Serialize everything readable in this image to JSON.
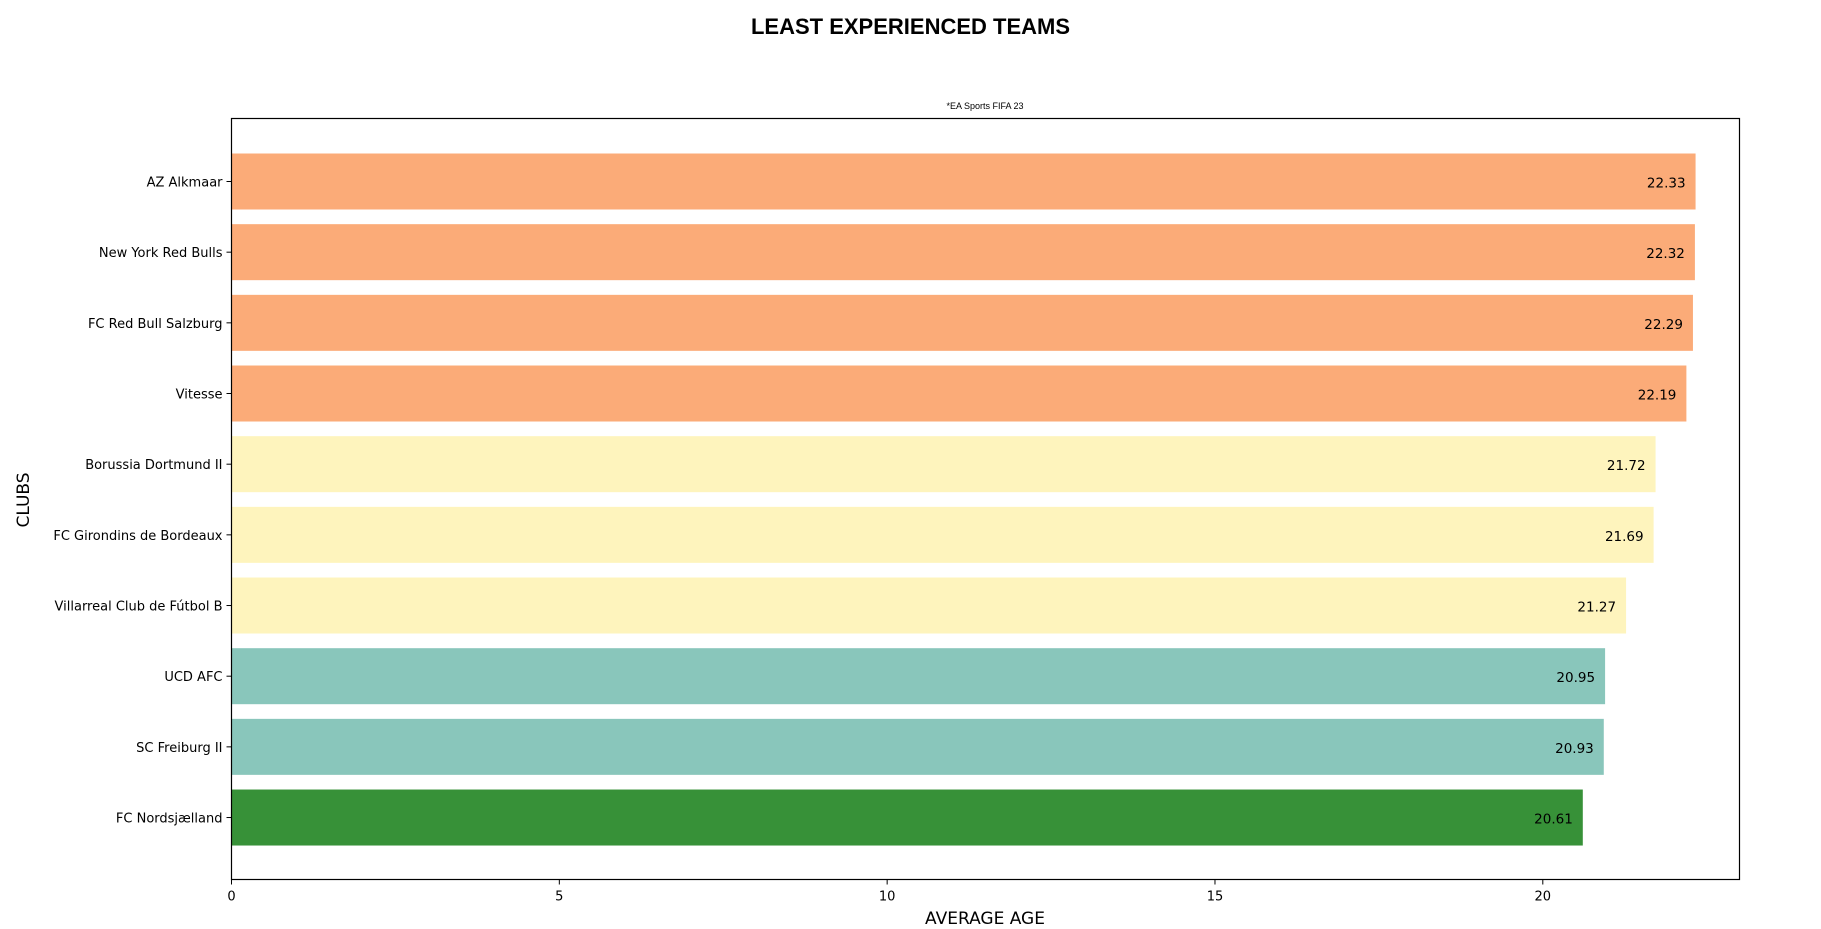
{
  "chart_data": {
    "type": "bar",
    "orientation": "horizontal",
    "title": "LEAST EXPERIENCED TEAMS",
    "subtitle": "*EA Sports FIFA 23",
    "xlabel": "AVERAGE AGE",
    "ylabel": "CLUBS",
    "xlim": [
      0,
      23
    ],
    "xticks": [
      0,
      5,
      10,
      15,
      20
    ],
    "grid": false,
    "categories": [
      "AZ Alkmaar",
      "New York Red Bulls",
      "FC Red Bull Salzburg",
      "Vitesse",
      "Borussia Dortmund II",
      "FC Girondins de Bordeaux",
      "Villarreal Club de Fútbol B",
      "UCD AFC",
      "SC Freiburg II",
      "FC Nordsjælland"
    ],
    "values": [
      22.33,
      22.32,
      22.29,
      22.19,
      21.72,
      21.69,
      21.27,
      20.95,
      20.93,
      20.61
    ],
    "value_labels": [
      "22.33",
      "22.32",
      "22.29",
      "22.19",
      "21.72",
      "21.69",
      "21.27",
      "20.95",
      "20.93",
      "20.61"
    ],
    "colors": [
      "#fbab78",
      "#fbab78",
      "#fbab78",
      "#fbab78",
      "#fef4bd",
      "#fef4bd",
      "#fef4bd",
      "#89c6bb",
      "#89c6bb",
      "#379138"
    ]
  }
}
